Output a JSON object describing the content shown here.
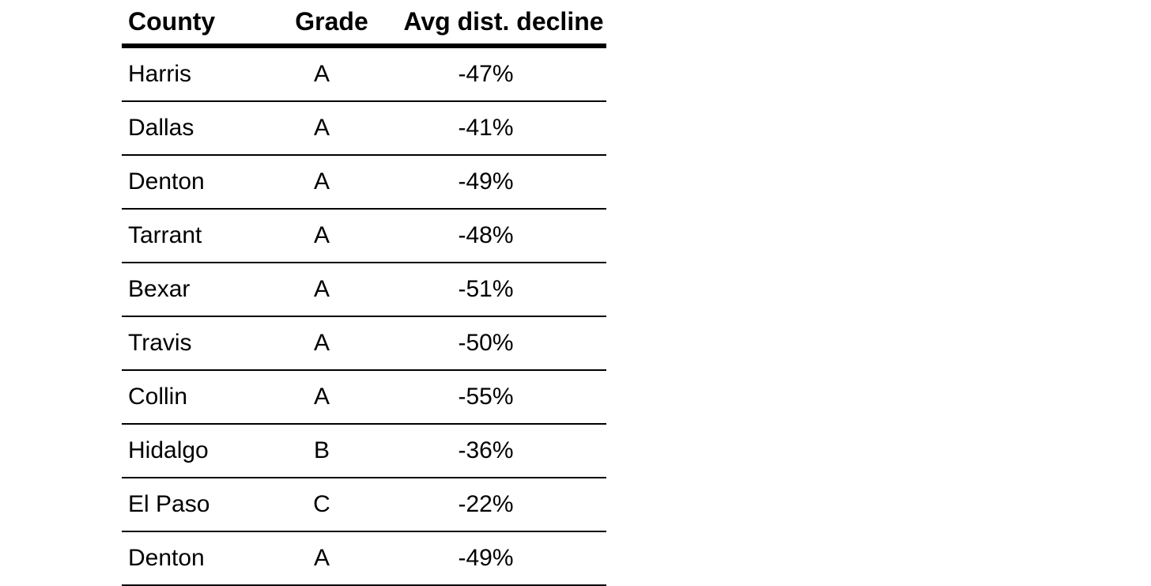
{
  "table": {
    "header": [
      "County",
      "Grade",
      "Avg dist. decline"
    ],
    "rows": [
      [
        "Harris",
        "A",
        "-47%"
      ],
      [
        "Dallas",
        "A",
        "-41%"
      ],
      [
        "Denton",
        "A",
        "-49%"
      ],
      [
        "Tarrant",
        "A",
        "-48%"
      ],
      [
        "Bexar",
        "A",
        "-51%"
      ],
      [
        "Travis",
        "A",
        "-50%"
      ],
      [
        "Collin",
        "A",
        "-55%"
      ],
      [
        "Hidalgo",
        "B",
        "-36%"
      ],
      [
        "El Paso",
        "C",
        "-22%"
      ],
      [
        "Denton",
        "A",
        "-49%"
      ]
    ]
  }
}
